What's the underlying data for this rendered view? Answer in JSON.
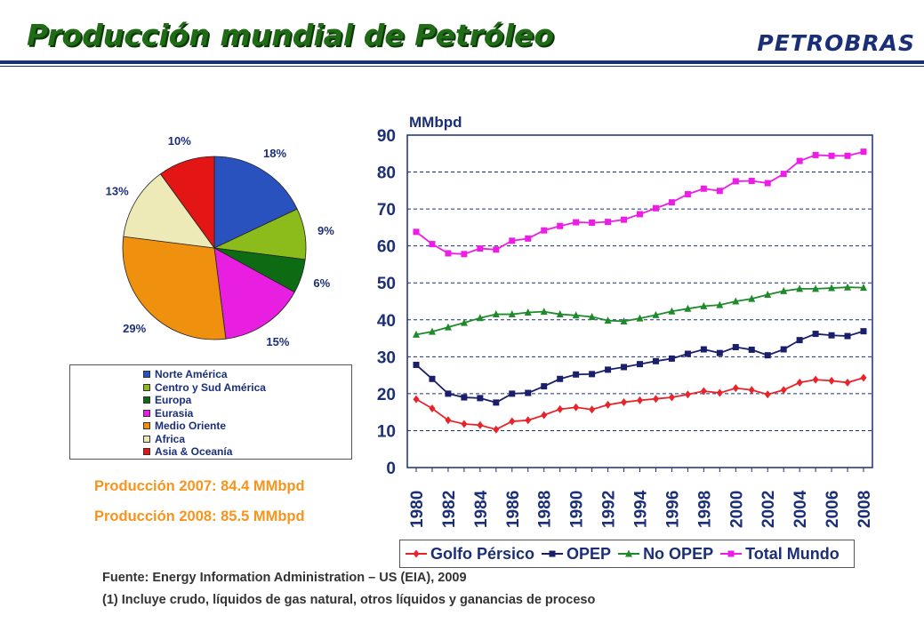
{
  "header": {
    "title": "Producción mundial de Petróleo",
    "brand": "PETROBRAS"
  },
  "colors": {
    "title_green": "#1f6b16",
    "navy": "#1b2f78",
    "orange_text": "#f7941d"
  },
  "chart_data": [
    {
      "type": "pie",
      "slices": [
        {
          "name": "Norte América",
          "value": 18,
          "label": "18%",
          "color": "#2a52be"
        },
        {
          "name": "Centro y Sud América",
          "value": 9,
          "label": "9%",
          "color": "#8cbc1c"
        },
        {
          "name": "Europa",
          "value": 6,
          "label": "6%",
          "color": "#0d6b14"
        },
        {
          "name": "Eurasia",
          "value": 15,
          "label": "15%",
          "color": "#e81ee0"
        },
        {
          "name": "Medio Oriente",
          "value": 29,
          "label": "29%",
          "color": "#f0900f"
        },
        {
          "name": "Africa",
          "value": 13,
          "label": "13%",
          "color": "#eeeab8"
        },
        {
          "name": "Asia & Oceanía",
          "value": 10,
          "label": "10%",
          "color": "#e31515"
        }
      ],
      "legend": "bottom"
    },
    {
      "type": "line",
      "ylabel": "MMbpd",
      "ylim": [
        0,
        90
      ],
      "yticks": [
        "0",
        "10",
        "20",
        "30",
        "40",
        "50",
        "60",
        "70",
        "80",
        "90"
      ],
      "x": [
        1980,
        1981,
        1982,
        1983,
        1984,
        1985,
        1986,
        1987,
        1988,
        1989,
        1990,
        1991,
        1992,
        1993,
        1994,
        1995,
        1996,
        1997,
        1998,
        1999,
        2000,
        2001,
        2002,
        2003,
        2004,
        2005,
        2006,
        2007,
        2008
      ],
      "xtick_labels": [
        "1980",
        "1982",
        "1984",
        "1986",
        "1988",
        "1990",
        "1992",
        "1994",
        "1996",
        "1998",
        "2000",
        "2002",
        "2004",
        "2006",
        "2008"
      ],
      "grid": "horizontal dashed",
      "legend": "bottom",
      "series": [
        {
          "name": "Golfo Pérsico",
          "color": "#e8242a",
          "marker": "diamond",
          "values": [
            18.5,
            16.0,
            12.8,
            11.8,
            11.5,
            10.3,
            12.5,
            12.8,
            14.2,
            15.8,
            16.3,
            15.7,
            17.0,
            17.7,
            18.2,
            18.6,
            19.0,
            19.8,
            20.7,
            20.2,
            21.5,
            21.0,
            19.8,
            21.0,
            23.0,
            23.8,
            23.5,
            23.0,
            24.3
          ]
        },
        {
          "name": "OPEP",
          "color": "#1b1f6b",
          "marker": "square",
          "values": [
            27.8,
            24.0,
            20.0,
            19.0,
            18.8,
            17.6,
            20.0,
            20.2,
            22.0,
            24.0,
            25.2,
            25.3,
            26.5,
            27.2,
            28.0,
            28.8,
            29.5,
            30.8,
            32.0,
            31.0,
            32.6,
            31.9,
            30.4,
            32.0,
            34.5,
            36.2,
            35.8,
            35.6,
            36.9
          ]
        },
        {
          "name": "No OPEP",
          "color": "#1f8a2c",
          "marker": "triangle",
          "values": [
            36.0,
            36.8,
            38.0,
            39.2,
            40.5,
            41.5,
            41.5,
            42.0,
            42.2,
            41.5,
            41.2,
            40.8,
            39.8,
            39.6,
            40.4,
            41.3,
            42.3,
            43.0,
            43.7,
            44.0,
            45.0,
            45.7,
            46.8,
            47.8,
            48.4,
            48.4,
            48.6,
            48.8,
            48.7
          ]
        },
        {
          "name": "Total Mundo",
          "color": "#ec1ee6",
          "marker": "square",
          "values": [
            63.8,
            60.5,
            58.0,
            57.8,
            59.3,
            59.0,
            61.4,
            62.0,
            64.2,
            65.4,
            66.4,
            66.3,
            66.5,
            67.1,
            68.6,
            70.2,
            71.8,
            74.0,
            75.5,
            74.9,
            77.5,
            77.6,
            77.0,
            79.5,
            83.0,
            84.6,
            84.4,
            84.4,
            85.5
          ]
        }
      ]
    }
  ],
  "pie_legend_items": [
    "Norte América",
    "Centro y Sud América",
    "Europa",
    "Eurasia",
    "Medio Oriente",
    "Africa",
    "Asia & Oceanía"
  ],
  "production": {
    "line_2007": "Producción 2007: 84.4  MMbpd",
    "line_2008": "Producción 2008: 85.5  MMbpd"
  },
  "footer": {
    "source": "Fuente: Energy Information Administration – US (EIA),  2009",
    "note": "(1) Incluye crudo, líquidos de gas natural, otros líquidos y ganancias de proceso"
  }
}
